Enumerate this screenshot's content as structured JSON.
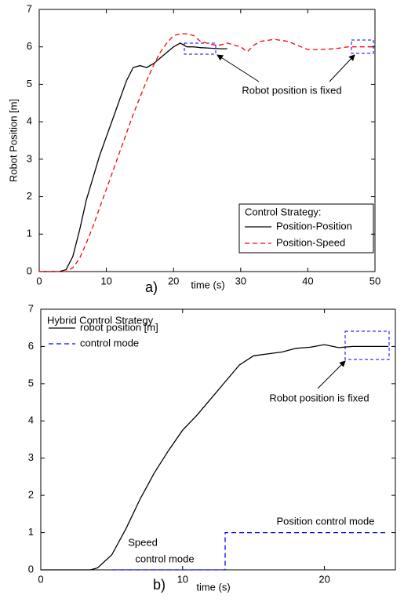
{
  "chart_data": [
    {
      "type": "line",
      "panel_label": "a)",
      "xlabel": "time (s)",
      "ylabel": "Robot Position [m]",
      "xlim": [
        0,
        50
      ],
      "ylim": [
        0,
        7
      ],
      "xticks": [
        0,
        10,
        20,
        30,
        40,
        50
      ],
      "yticks": [
        0,
        1,
        2,
        3,
        4,
        5,
        6,
        7
      ],
      "legend_title": "Control Strategy:",
      "legend": "lower right",
      "annotations": [
        "Robot position is fixed"
      ],
      "series": [
        {
          "name": "Position-Position",
          "color": "#000000",
          "linestyle": "solid",
          "x": [
            0,
            3,
            4,
            5,
            6,
            7,
            8,
            9,
            10,
            11,
            12,
            13,
            14,
            15,
            16,
            17,
            18,
            19,
            20,
            21,
            22,
            23,
            24,
            25,
            26,
            27,
            28
          ],
          "values": [
            0,
            0,
            0.05,
            0.4,
            1.1,
            1.9,
            2.5,
            3.1,
            3.6,
            4.1,
            4.6,
            5.1,
            5.45,
            5.5,
            5.45,
            5.55,
            5.7,
            5.85,
            6.0,
            6.1,
            6.0,
            6.0,
            5.98,
            5.97,
            5.96,
            5.95,
            5.95
          ]
        },
        {
          "name": "Position-Speed",
          "color": "#ff0000",
          "linestyle": "dashed",
          "x": [
            0,
            4,
            5,
            6,
            7,
            8,
            9,
            10,
            11,
            12,
            13,
            14,
            15,
            16,
            17,
            18,
            19,
            20,
            21,
            22,
            23,
            24,
            25,
            26,
            27,
            28,
            30,
            31,
            32,
            33,
            35,
            37,
            39,
            40,
            42,
            44,
            46,
            48,
            49.5
          ],
          "values": [
            0,
            0,
            0.1,
            0.35,
            0.75,
            1.2,
            1.7,
            2.2,
            2.7,
            3.2,
            3.7,
            4.2,
            4.65,
            5.1,
            5.5,
            5.85,
            6.1,
            6.3,
            6.35,
            6.35,
            6.3,
            6.15,
            6.1,
            6.05,
            6.05,
            6.1,
            6.0,
            5.87,
            6.05,
            6.15,
            6.2,
            6.15,
            6.0,
            5.93,
            5.93,
            5.95,
            6.0,
            6.0,
            6.0
          ]
        }
      ]
    },
    {
      "type": "line",
      "panel_label": "b)",
      "xlabel": "time (s)",
      "xlim": [
        0,
        25
      ],
      "ylim": [
        0,
        7
      ],
      "xticks": [
        0,
        10,
        20
      ],
      "yticks": [
        0,
        1,
        2,
        3,
        4,
        5,
        6,
        7
      ],
      "legend_title": "Hybrid Control Strategy",
      "legend": "upper left",
      "annotations": [
        "Robot position is fixed",
        "Position control mode",
        "Speed",
        "control mode"
      ],
      "series": [
        {
          "name": "robot position [m]",
          "color": "#000000",
          "linestyle": "solid",
          "x": [
            0,
            3.5,
            4,
            5,
            6,
            7,
            8,
            9,
            10,
            11,
            12,
            13,
            14,
            15,
            16,
            17,
            18,
            19,
            20,
            21,
            22,
            23,
            24.5
          ],
          "values": [
            0,
            0,
            0.05,
            0.4,
            1.1,
            1.9,
            2.6,
            3.2,
            3.75,
            4.15,
            4.6,
            5.05,
            5.5,
            5.75,
            5.8,
            5.85,
            5.95,
            5.98,
            6.05,
            5.97,
            6.0,
            6.0,
            6.0
          ]
        },
        {
          "name": "control mode",
          "color": "#0000ff",
          "linestyle": "dashed",
          "x": [
            5,
            13,
            13,
            24.5
          ],
          "values": [
            0,
            0,
            1,
            1
          ]
        }
      ]
    }
  ]
}
